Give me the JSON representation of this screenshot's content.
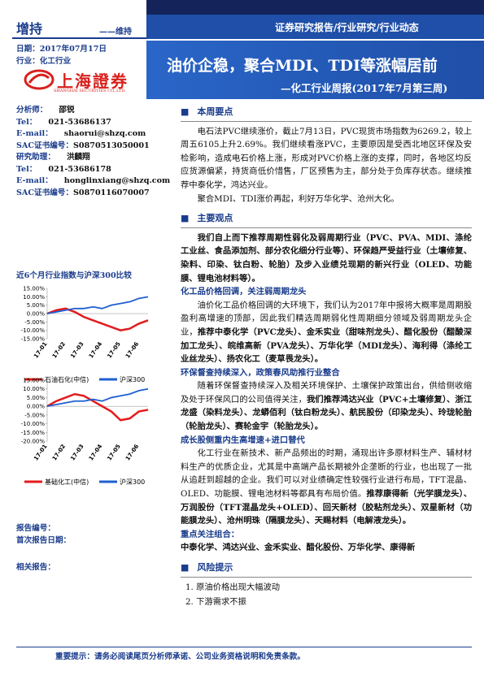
{
  "header": {
    "rating": "增持",
    "rating_prev": "——维持",
    "date": "日期：2017年07月17日",
    "industry": "行业：化工行业",
    "logo_cn": "上海證券",
    "logo_en": "SHANGHAI SECURITIES CO.,LTD.",
    "banner": "证券研究报告/行业研究/行业动态",
    "title": "油价企稳，聚合MDI、TDI等涨幅居前",
    "subtitle": "—化工行业周报(2017年7月第三周)"
  },
  "analysts": [
    [
      "分析师：",
      "邵锐"
    ],
    [
      "Tel：",
      "021-53686137"
    ],
    [
      "E-mail：",
      "shaorui@shzq.com"
    ],
    [
      "SAC证书编号：",
      "S0870513050001"
    ],
    [
      "研究助理：",
      "洪麟翔"
    ],
    [
      "Tel：",
      "021-53686178"
    ],
    [
      "E-mail：",
      "honglinxiang@shzq.com"
    ],
    [
      "SAC证书编号：",
      "S0870116070007"
    ]
  ],
  "chart_title": "近6个月行业指数与沪深300比较",
  "charts": [
    {
      "type": "line",
      "categories": [
        "17-01",
        null,
        "17-02",
        null,
        "17-03",
        null,
        "17-04",
        null,
        "17-05",
        null,
        "17-06",
        null
      ],
      "ylim": [
        -15,
        15
      ],
      "yticks": [
        {
          "value": 15,
          "label": "15.00%"
        },
        {
          "value": 10,
          "label": "10.00%"
        },
        {
          "value": 5,
          "label": "5.00%"
        },
        {
          "value": 0,
          "label": "0.00%"
        },
        {
          "value": -5,
          "label": "-5.00%"
        },
        {
          "value": -10,
          "label": "-10.00%"
        },
        {
          "value": -15,
          "label": "-15.00%"
        }
      ],
      "series": [
        {
          "name": "石油石化(中信)",
          "color": "#e41a1c",
          "values": [
            0,
            2,
            3,
            1,
            -2,
            -4,
            -6,
            -8,
            -10,
            -9,
            -6,
            -4
          ]
        },
        {
          "name": "沪深300",
          "color": "#1f5fd0",
          "values": [
            0,
            1,
            2,
            3,
            3,
            4,
            3,
            5,
            6,
            7,
            9,
            10
          ]
        }
      ]
    },
    {
      "type": "line",
      "categories": [
        "17-01",
        null,
        "17-02",
        null,
        "17-03",
        null,
        "17-04",
        null,
        "17-05",
        null,
        "17-06",
        null
      ],
      "ylim": [
        -20,
        15
      ],
      "yticks": [
        {
          "value": 15,
          "label": "15.00%"
        },
        {
          "value": 10,
          "label": "10.00%"
        },
        {
          "value": 5,
          "label": "5.00%"
        },
        {
          "value": 0,
          "label": "0.00%"
        },
        {
          "value": -5,
          "label": "-5.00%"
        },
        {
          "value": -10,
          "label": "-10.00%"
        },
        {
          "value": -15,
          "label": "-15.00%"
        },
        {
          "value": -20,
          "label": "-20.00%"
        }
      ],
      "series": [
        {
          "name": "基础化工(中信)",
          "color": "#e41a1c",
          "values": [
            0,
            3,
            5,
            7,
            6,
            3,
            0,
            -3,
            -8,
            -7,
            -3,
            -2
          ]
        },
        {
          "name": "沪深300",
          "color": "#1f5fd0",
          "values": [
            0,
            1,
            2,
            3,
            3,
            4,
            3,
            5,
            6,
            7,
            9,
            10
          ]
        }
      ]
    }
  ],
  "report_meta": [
    "报告编号：",
    "首次报告日期：",
    "相关报告："
  ],
  "sections": [
    {
      "title": "本周要点",
      "items": [
        {
          "type": "p",
          "runs": [
            {
              "text": "电石法PVC继续涨价，截止7月13日，PVC现货市场指数为6269.2，较上周五6105上升2.69%。我们继续看涨PVC，主要原因是受西北地区环保及安检影响，造成电石价格上涨，形成对PVC价格上涨的支撑，同时，各地区均反应货源偏紧，持货商低价惜售，厂区预售为主，部分处于负库存状态。继续推荐中泰化学，鸿达兴业。",
              "bold": false
            }
          ]
        },
        {
          "type": "p",
          "runs": [
            {
              "text": "聚合MDI、TDI涨价再起，利好万华化学、沧州大化。",
              "bold": false
            }
          ]
        }
      ]
    },
    {
      "title": "主要观点",
      "items": [
        {
          "type": "p",
          "runs": [
            {
              "text": "我们自上而下推荐周期性弱化及弱周期行业（PVC、PVA、MDI、涤纶工业丝、食品添加剂、部分农化细分行业等）、环保趋严受益行业（土壤修复、染料、印染、钛白粉、轮胎）及步入业绩兑现期的新兴行业（OLED、功能膜、锂电池材料等）。",
              "bold": true
            }
          ]
        },
        {
          "type": "h",
          "text": "化工品价格回调，关注弱周期龙头"
        },
        {
          "type": "p",
          "runs": [
            {
              "text": "油价化工品价格回调的大环境下，我们认为2017年中报将大概率是周期股盈利高增速的顶部，因此我们精选周期弱化性周期细分领域及弱周期龙头企业，",
              "bold": false
            },
            {
              "text": "推荐中泰化学（PVC龙头）、金禾实业（甜味剂龙头）、醋化股份（醋酸深加工龙头）、皖维高新（PVA龙头）、万华化学（MDI龙头）、海利得（涤纶工业丝龙头）、扬农化工（麦草畏龙头）。",
              "bold": true
            }
          ]
        },
        {
          "type": "h",
          "text": "环保督查持续深入，政策春风助推行业整合"
        },
        {
          "type": "p",
          "runs": [
            {
              "text": "随着环保督查持续深入及相关环境保护、土壤保护政策出台，供给侧收缩及处于环保风口的公司值得关注，",
              "bold": false
            },
            {
              "text": "我们推荐鸿达兴业（PVC+土壤修复）、浙江龙盛（染料龙头）、龙蟒佰利（钛白粉龙头）、航民股份（印染龙头）、玲珑轮胎（轮胎龙头）、赛轮金宇（轮胎龙头）。",
              "bold": true
            }
          ]
        },
        {
          "type": "h",
          "text": "成长股侧重内生高增速+进口替代"
        },
        {
          "type": "p",
          "runs": [
            {
              "text": "化工行业在新技术、新产品频出的时期，涌现出许多原材料生产、辅材材料生产的优质企业，尤其是中高端产品长期被外企垄断的行业，也出现了一批从追赶到超越的企业。我们可以对业绩确定性较强行业进行布局，TFT混晶、OLED、功能膜、锂电池材料等都具有布局价值。",
              "bold": false
            },
            {
              "text": "推荐康得新（光学膜龙头）、万润股份（TFT混晶龙头+OLED）、回天新材（胶粘剂龙头）、双星新材（功能膜龙头）、沧州明珠（隔膜龙头）、天赐材料（电解液龙头）。",
              "bold": true
            }
          ]
        },
        {
          "type": "h",
          "text": "重点关注组合："
        },
        {
          "type": "b",
          "runs": [
            {
              "text": "中泰化学、鸿达兴业、金禾实业、醋化股份、万华化学、康得新",
              "bold": true
            }
          ]
        }
      ]
    },
    {
      "title": "风险提示",
      "items": [
        {
          "type": "l",
          "runs": [
            {
              "text": "1. 原油价格出现大幅波动",
              "bold": false
            }
          ]
        },
        {
          "type": "l",
          "runs": [
            {
              "text": "2. 下游需求不振",
              "bold": false
            }
          ]
        }
      ]
    }
  ],
  "footer": "重要提示：请务必阅读尾页分析师承诺、公司业务资格说明和免责条款。"
}
